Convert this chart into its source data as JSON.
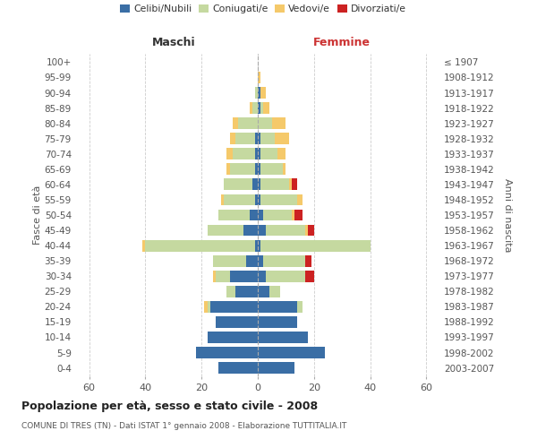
{
  "age_groups": [
    "0-4",
    "5-9",
    "10-14",
    "15-19",
    "20-24",
    "25-29",
    "30-34",
    "35-39",
    "40-44",
    "45-49",
    "50-54",
    "55-59",
    "60-64",
    "65-69",
    "70-74",
    "75-79",
    "80-84",
    "85-89",
    "90-94",
    "95-99",
    "100+"
  ],
  "birth_years": [
    "2003-2007",
    "1998-2002",
    "1993-1997",
    "1988-1992",
    "1983-1987",
    "1978-1982",
    "1973-1977",
    "1968-1972",
    "1963-1967",
    "1958-1962",
    "1953-1957",
    "1948-1952",
    "1943-1947",
    "1938-1942",
    "1933-1937",
    "1928-1932",
    "1923-1927",
    "1918-1922",
    "1913-1917",
    "1908-1912",
    "≤ 1907"
  ],
  "maschi": {
    "celibi": [
      14,
      22,
      18,
      15,
      17,
      8,
      10,
      4,
      1,
      5,
      3,
      1,
      2,
      1,
      1,
      1,
      0,
      0,
      0,
      0,
      0
    ],
    "coniugati": [
      0,
      0,
      0,
      0,
      1,
      3,
      5,
      12,
      39,
      13,
      11,
      11,
      10,
      9,
      8,
      7,
      7,
      2,
      1,
      0,
      0
    ],
    "vedovi": [
      0,
      0,
      0,
      0,
      1,
      0,
      1,
      0,
      1,
      0,
      0,
      1,
      0,
      1,
      2,
      2,
      2,
      1,
      0,
      0,
      0
    ],
    "divorziati": [
      0,
      0,
      0,
      0,
      0,
      0,
      0,
      0,
      0,
      0,
      0,
      0,
      0,
      0,
      0,
      0,
      0,
      0,
      0,
      0,
      0
    ]
  },
  "femmine": {
    "nubili": [
      13,
      24,
      18,
      14,
      14,
      4,
      3,
      2,
      1,
      3,
      2,
      1,
      1,
      1,
      1,
      1,
      0,
      1,
      1,
      0,
      0
    ],
    "coniugate": [
      0,
      0,
      0,
      0,
      2,
      4,
      14,
      15,
      39,
      14,
      10,
      13,
      10,
      8,
      6,
      5,
      5,
      1,
      0,
      0,
      0
    ],
    "vedove": [
      0,
      0,
      0,
      0,
      0,
      0,
      0,
      0,
      0,
      1,
      1,
      2,
      1,
      1,
      3,
      5,
      5,
      2,
      2,
      1,
      0
    ],
    "divorziate": [
      0,
      0,
      0,
      0,
      0,
      0,
      3,
      2,
      0,
      2,
      3,
      0,
      2,
      0,
      0,
      0,
      0,
      0,
      0,
      0,
      0
    ]
  },
  "colors": {
    "celibi_nubili": "#3a6ea5",
    "coniugati": "#c5d9a0",
    "vedovi": "#f5c96a",
    "divorziati": "#cc2222"
  },
  "xlim": 65,
  "title": "Popolazione per età, sesso e stato civile - 2008",
  "subtitle": "COMUNE DI TRES (TN) - Dati ISTAT 1° gennaio 2008 - Elaborazione TUTTITALIA.IT",
  "ylabel_left": "Fasce di età",
  "ylabel_right": "Anni di nascita",
  "xlabel_maschi": "Maschi",
  "xlabel_femmine": "Femmine"
}
